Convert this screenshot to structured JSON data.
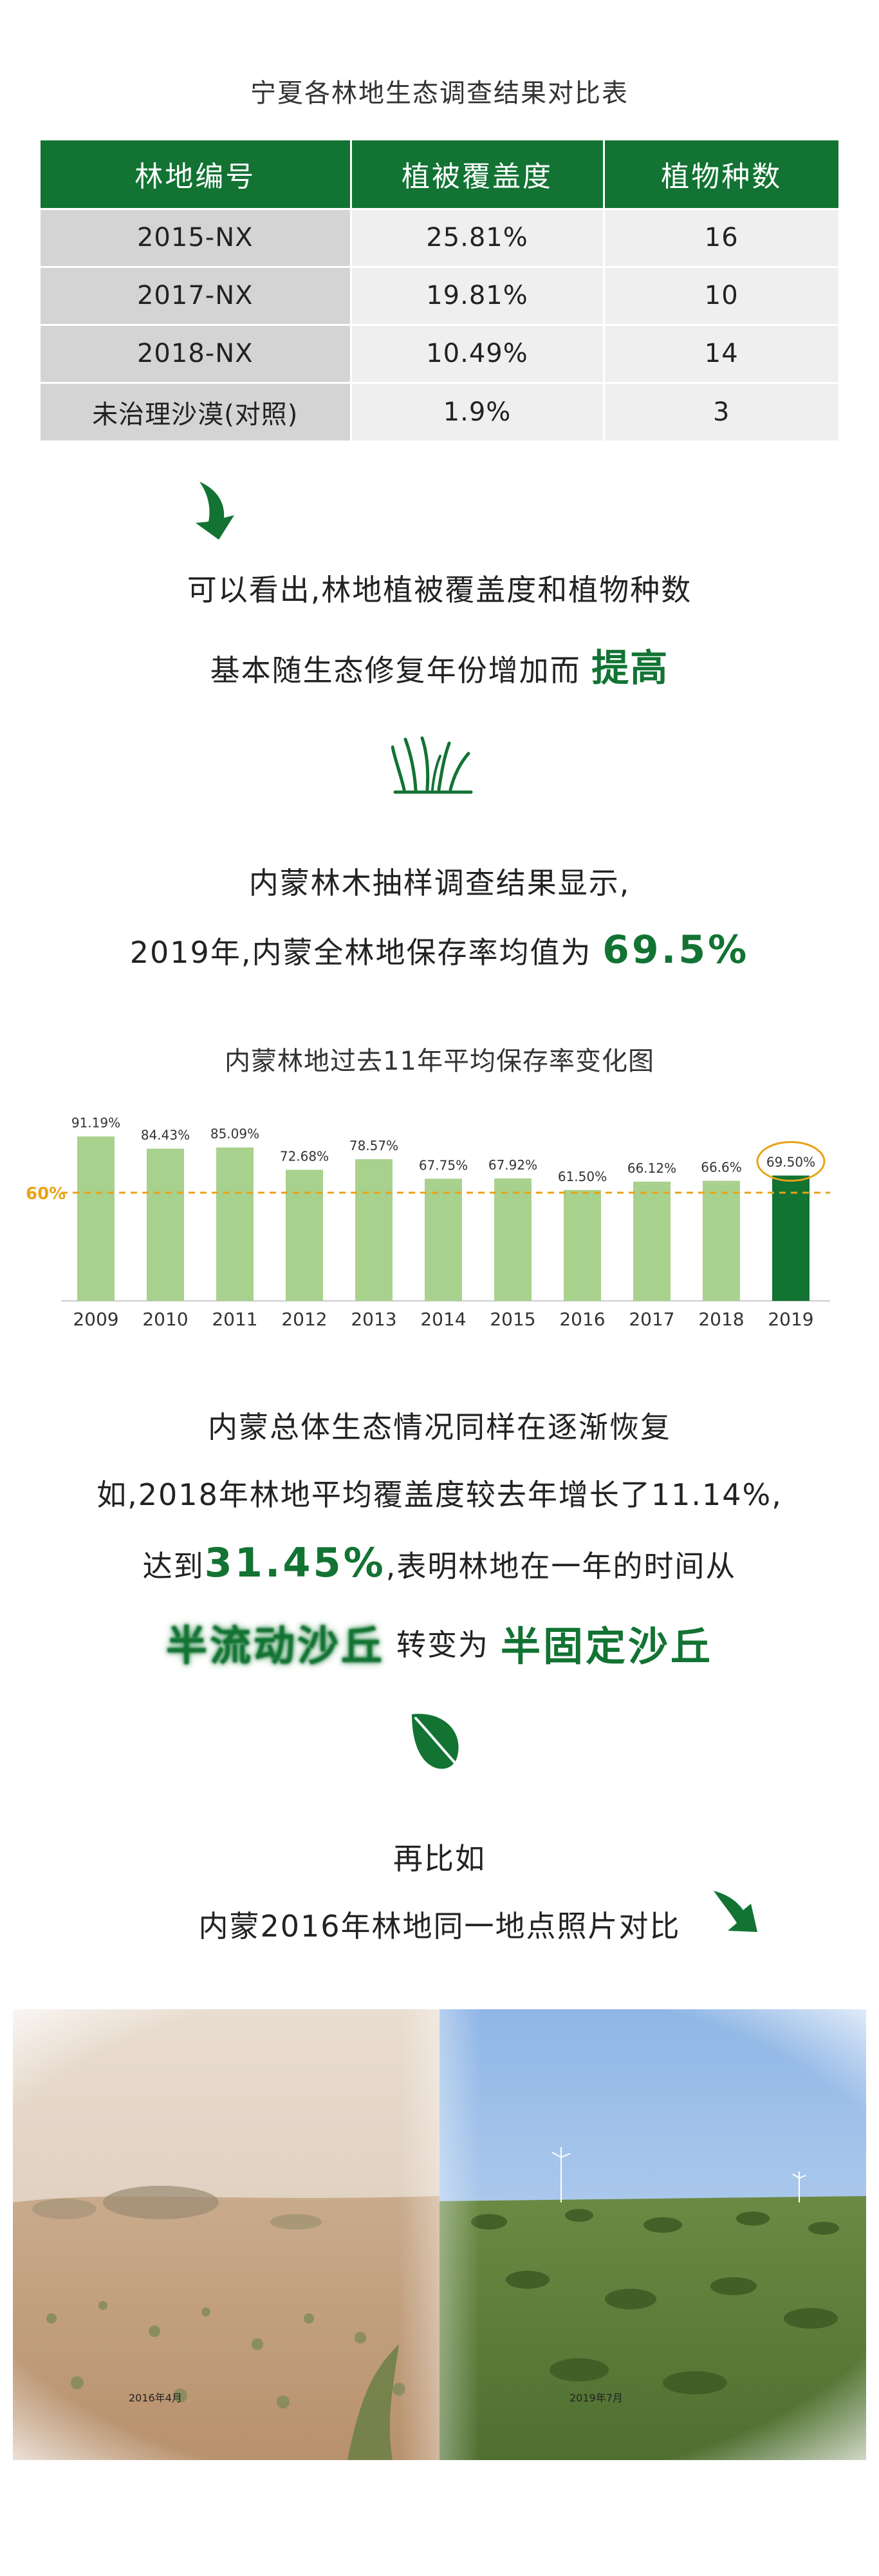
{
  "table": {
    "title": "宁夏各林地生态调查结果对比表",
    "headers": [
      "林地编号",
      "植被覆盖度",
      "植物种数"
    ],
    "rows": [
      [
        "2015-NX",
        "25.81%",
        "16"
      ],
      [
        "2017-NX",
        "19.81%",
        "10"
      ],
      [
        "2018-NX",
        "10.49%",
        "14"
      ],
      [
        "未治理沙漠(对照)",
        "1.9%",
        "3"
      ]
    ]
  },
  "text1": {
    "line1": "可以看出,林地植被覆盖度和植物种数",
    "line2_prefix": "基本随生态修复年份增加而",
    "line2_emph": "提高"
  },
  "text2": {
    "line1": "内蒙林木抽样调查结果显示,",
    "line2_prefix": "2019年,内蒙全林地保存率均值为",
    "line2_emph": "69.5%"
  },
  "chart_data": {
    "type": "bar",
    "title": "内蒙林地过去11年平均保存率变化图",
    "categories": [
      "2009",
      "2010",
      "2011",
      "2012",
      "2013",
      "2014",
      "2015",
      "2016",
      "2017",
      "2018",
      "2019"
    ],
    "values": [
      91.19,
      84.43,
      85.09,
      72.68,
      78.57,
      67.75,
      67.92,
      61.5,
      66.12,
      66.6,
      69.5
    ],
    "data_labels": [
      "91.19%",
      "84.43%",
      "85.09%",
      "72.68%",
      "78.57%",
      "67.75%",
      "67.92%",
      "61.50%",
      "66.12%",
      "66.6%",
      "69.50%"
    ],
    "reference_line": {
      "value": 60,
      "label": "60%",
      "color": "#e8a317"
    },
    "highlight_index": 10,
    "colors": {
      "bar": "#a9d18e",
      "highlight": "#127333",
      "circle": "#e8a317"
    },
    "ylim": [
      0,
      100
    ],
    "grid": false,
    "xlabel": "",
    "ylabel": ""
  },
  "text3": {
    "line1": "内蒙总体生态情况同样在逐渐恢复",
    "line2": "如,2018年林地平均覆盖度较去年增长了11.14%,",
    "line3_prefix": "达到",
    "line3_emph": "31.45%",
    "line3_suffix": ",表明林地在一年的时间从",
    "line4_from": "半流动沙丘",
    "line4_mid": "转变为",
    "line4_to": "半固定沙丘"
  },
  "text4": {
    "line1": "再比如",
    "line2": "内蒙2016年林地同一地点照片对比"
  },
  "photo": {
    "left_label": "2016年4月",
    "right_label": "2019年7月"
  },
  "icons": [
    "arrow-down-icon",
    "grass-icon",
    "leaf-icon",
    "arrow-down-right-icon"
  ],
  "colors": {
    "brand_green": "#127333",
    "accent_orange": "#e8a317"
  }
}
